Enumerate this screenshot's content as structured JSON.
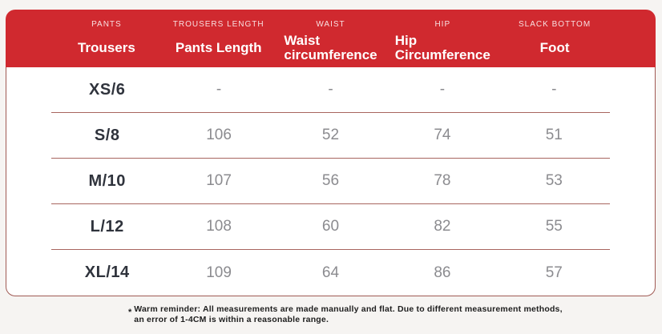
{
  "theme": {
    "page_background": "#F6F4F2",
    "header_red": "#D0292F",
    "body_border": "#A05A54",
    "row_divider": "#A8655F",
    "size_text_color": "#2F333C",
    "value_text_color": "#8B8B8F"
  },
  "table": {
    "columns": [
      {
        "eyebrow": "PANTS",
        "label_lines": [
          "Trousers"
        ]
      },
      {
        "eyebrow": "TROUSERS LENGTH",
        "label_lines": [
          "Pants Length"
        ]
      },
      {
        "eyebrow": "WAIST",
        "label_lines": [
          "Waist",
          "circumference"
        ]
      },
      {
        "eyebrow": "HIP",
        "label_lines": [
          "Hip",
          "Circumference"
        ]
      },
      {
        "eyebrow": "SLACK BOTTOM",
        "label_lines": [
          "Foot"
        ]
      }
    ],
    "rows": [
      {
        "size": "XS/6",
        "values": [
          "-",
          "-",
          "-",
          "-"
        ]
      },
      {
        "size": "S/8",
        "values": [
          "106",
          "52",
          "74",
          "51"
        ]
      },
      {
        "size": "M/10",
        "values": [
          "107",
          "56",
          "78",
          "53"
        ]
      },
      {
        "size": "L/12",
        "values": [
          "108",
          "60",
          "82",
          "55"
        ]
      },
      {
        "size": "XL/14",
        "values": [
          "109",
          "64",
          "86",
          "57"
        ]
      }
    ]
  },
  "footnote": {
    "marker": "*",
    "line1": "Warm reminder: All measurements are made manually and flat. Due to different measurement methods,",
    "line2": "an error of 1-4CM is within a reasonable range."
  }
}
